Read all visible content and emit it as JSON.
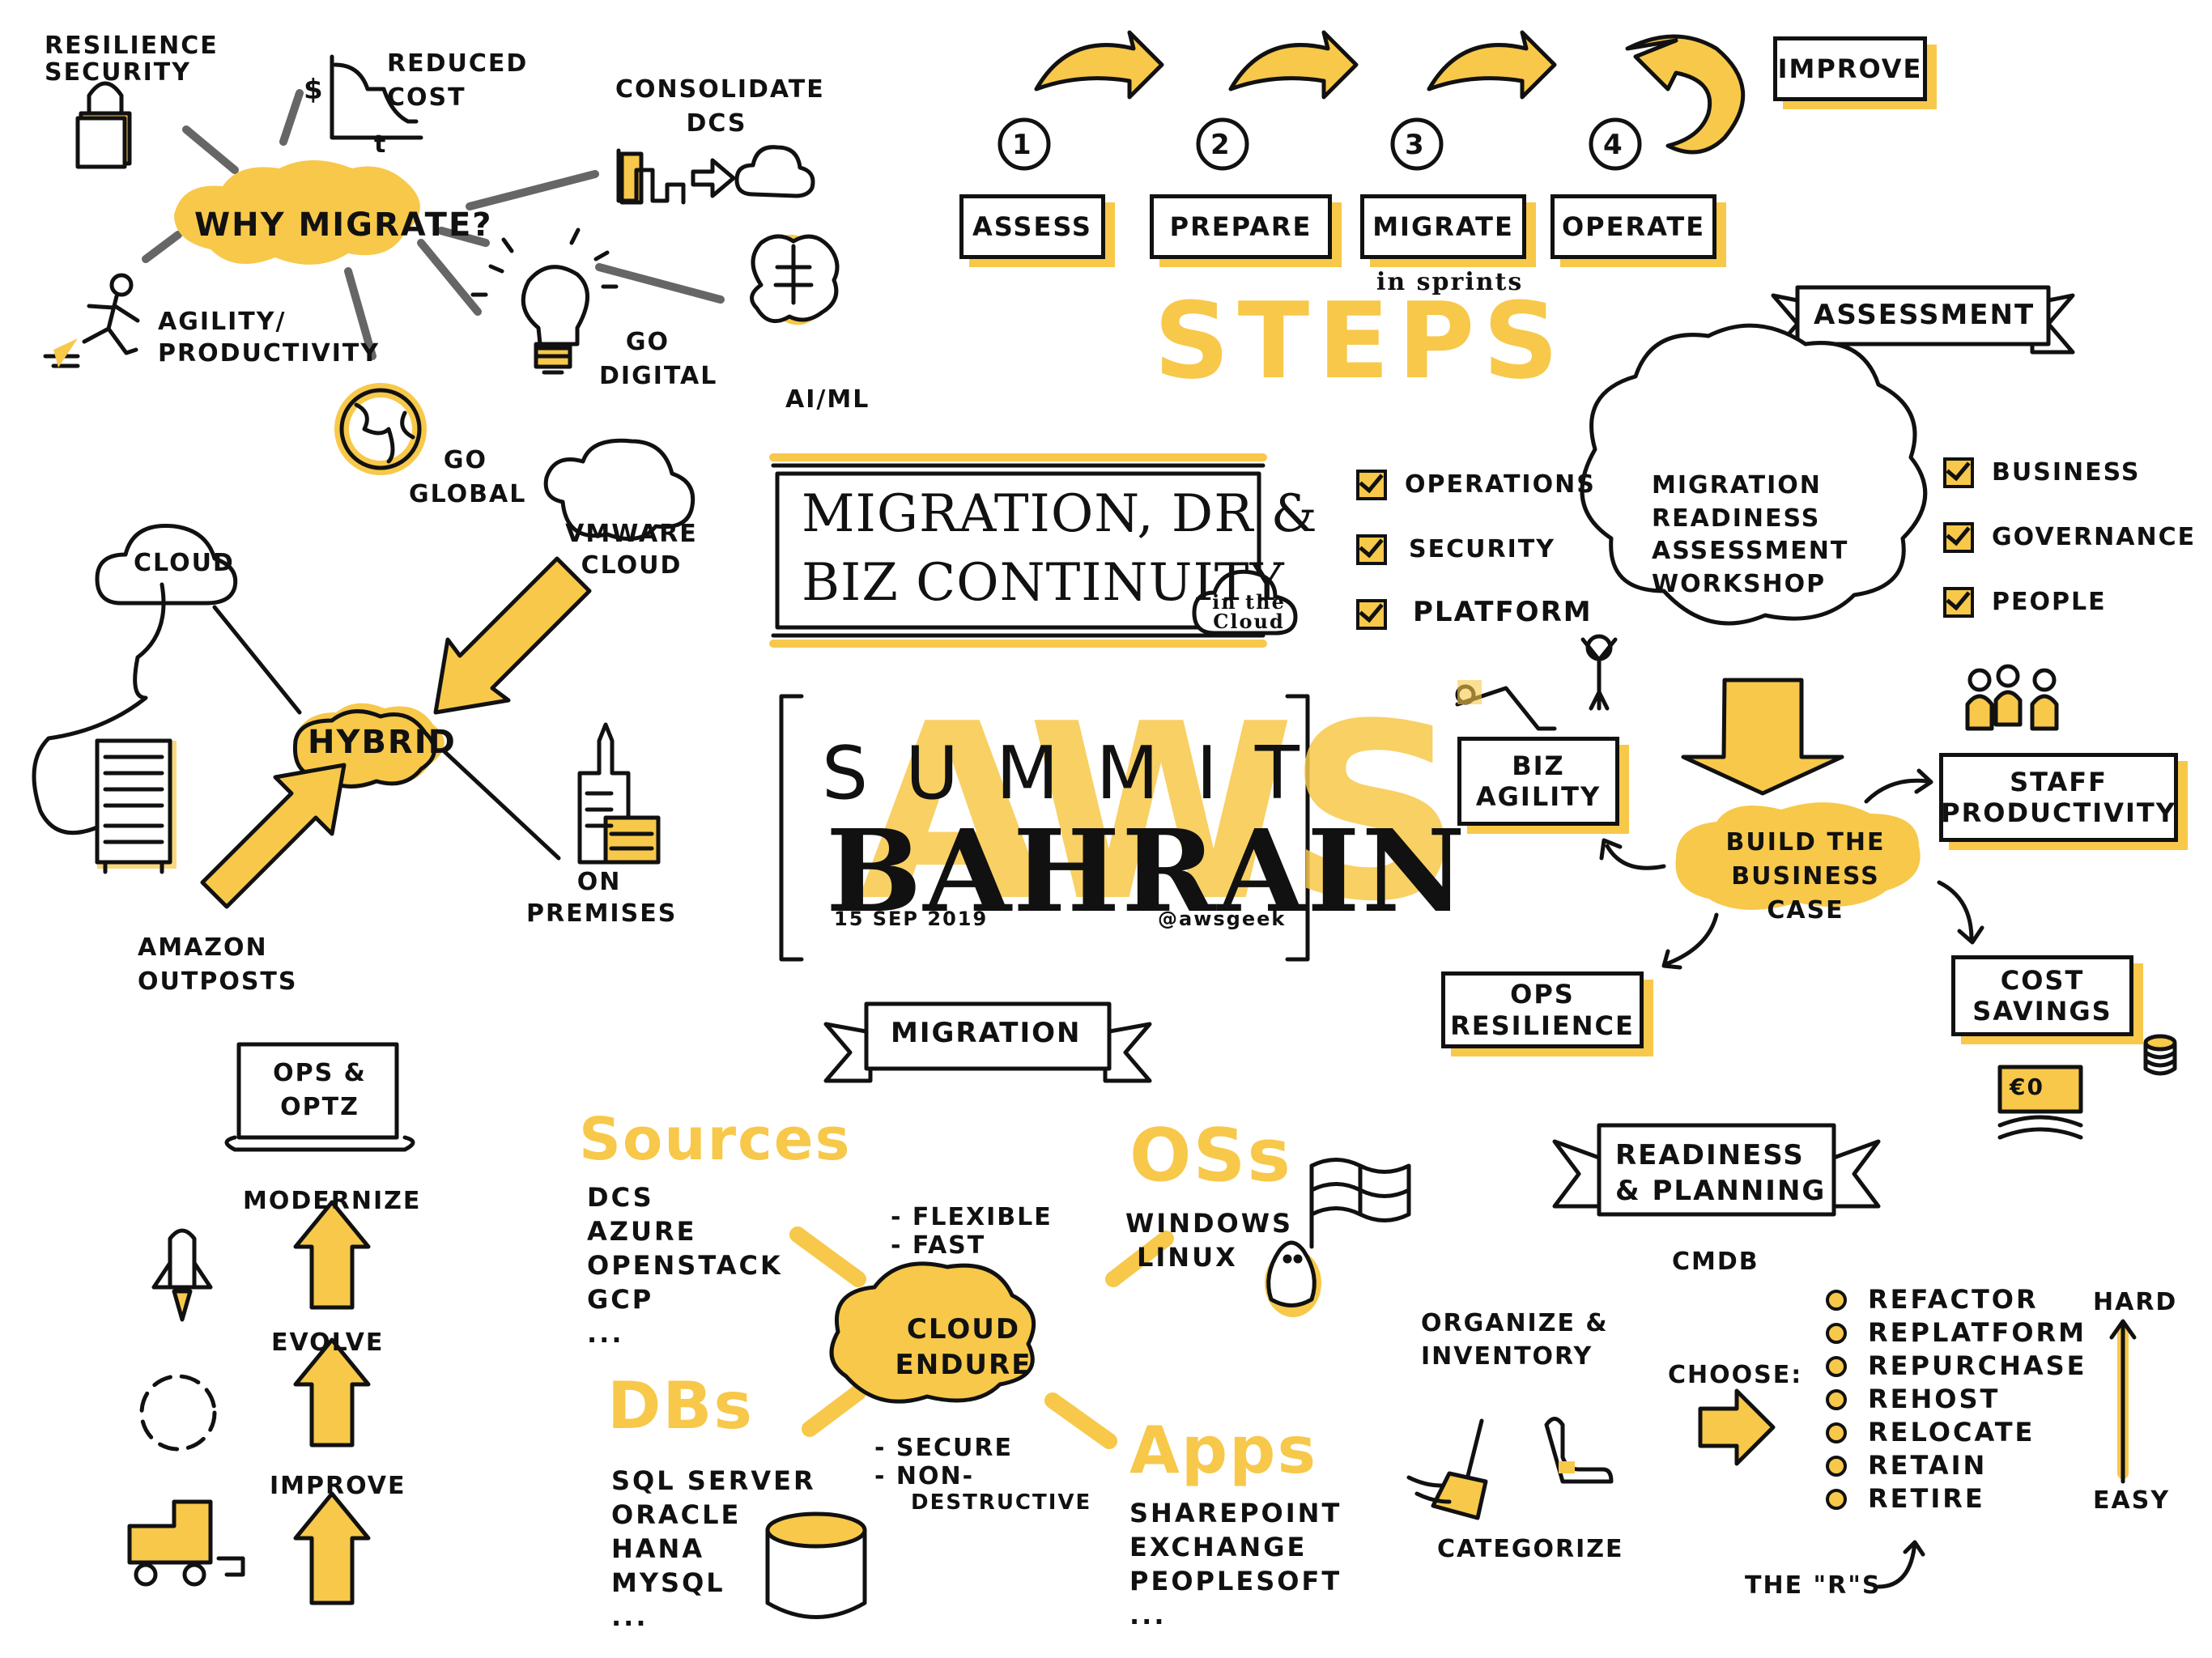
{
  "colors": {
    "accent": "#f7c84a",
    "ink": "#111111",
    "background": "#ffffff"
  },
  "title": {
    "line1": "MIGRATION, DR &",
    "line2": "BIZ CONTINUITY",
    "badge": "in the Cloud"
  },
  "summit": {
    "word1": "SUMMIT",
    "word2": "BAHRAIN",
    "watermark": "AWS",
    "date": "15 SEP 2019",
    "handle": "@awsgeek"
  },
  "why_migrate": {
    "center": "WHY MIGRATE?",
    "items": {
      "resilience": "RESILIENCE SECURITY",
      "cost": "REDUCED COST",
      "cost_axis_y": "$",
      "cost_axis_x": "t",
      "consolidate": "CONSOLIDATE DCs",
      "agility": "AGILITY/ PRODUCTIVITY",
      "digital": "GO DIGITAL",
      "aiml": "AI/ML",
      "global": "GO GLOBAL"
    },
    "icons": [
      "lock-icon",
      "cost-graph-icon",
      "datacenter-to-cloud-icon",
      "runner-icon",
      "lightbulb-icon",
      "brain-icon",
      "globe-icon"
    ]
  },
  "steps": {
    "title": "STEPS",
    "improve": "IMPROVE",
    "items": [
      {
        "num": "1",
        "label": "ASSESS"
      },
      {
        "num": "2",
        "label": "PREPARE"
      },
      {
        "num": "3",
        "label": "MIGRATE"
      },
      {
        "num": "4",
        "label": "OPERATE"
      }
    ],
    "note": "in sprints"
  },
  "hybrid": {
    "center": "HYBRID",
    "cloud": "CLOUD",
    "vmware": "VMWARE CLOUD",
    "on_prem": "ON PREMISES",
    "outposts": "AMAZON OUTPOSTS"
  },
  "assessment": {
    "banner": "ASSESSMENT",
    "workshop": "MIGRATION READINESS ASSESSMENT WORKSHOP",
    "left_checks": [
      "OPERATIONS",
      "SECURITY",
      "PLATFORM"
    ],
    "right_checks": [
      "BUSINESS",
      "GOVERNANCE",
      "PEOPLE"
    ],
    "business_case": "BUILD THE BUSINESS CASE",
    "outcomes": {
      "agility": "BIZ AGILITY",
      "staff": "STAFF PRODUCTIVITY",
      "ops": "OPS RESILIENCE",
      "cost": "COST SAVINGS"
    },
    "money_symbol": "€0"
  },
  "ops": {
    "banner": "OPS & OPTZ",
    "levels": [
      "MODERNIZE",
      "EVOLVE",
      "IMPROVE"
    ]
  },
  "migration": {
    "banner": "MIGRATION",
    "center": "CLOUD ENDURE",
    "features_top": [
      "- FLEXIBLE",
      "- FAST"
    ],
    "features_bottom": [
      "- SECURE",
      "- NON-",
      "DESTRUCTIVE"
    ],
    "sources": {
      "title": "Sources",
      "items": [
        "DCs",
        "AZURE",
        "OPENSTACK",
        "GCP",
        "..."
      ]
    },
    "oss": {
      "title": "OSs",
      "items": [
        "WINDOWS",
        "LINUX"
      ]
    },
    "dbs": {
      "title": "DBs",
      "items": [
        "SQL SERVER",
        "ORACLE",
        "HANA",
        "MYSQL",
        "..."
      ]
    },
    "apps": {
      "title": "Apps",
      "items": [
        "SHAREPOINT",
        "EXCHANGE",
        "PEOPLESOFT",
        "..."
      ]
    }
  },
  "readiness": {
    "banner": "READINESS & PLANNING",
    "cmdb": "CMDB",
    "organize": "ORGANIZE & INVENTORY",
    "categorize": "CATEGORIZE",
    "choose": "CHOOSE:",
    "rs": [
      "REFACTOR",
      "REPLATFORM",
      "REPURCHASE",
      "REHOST",
      "RELOCATE",
      "RETAIN",
      "RETIRE"
    ],
    "hard": "HARD",
    "easy": "EASY",
    "the_rs": "THE \"R\"s"
  }
}
